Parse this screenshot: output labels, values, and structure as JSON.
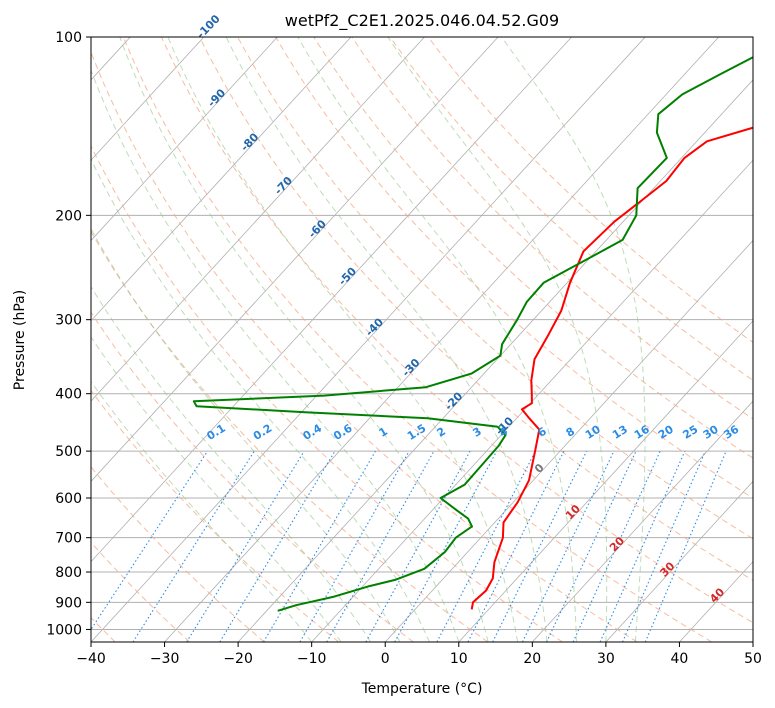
{
  "chart_data": {
    "type": "line",
    "subtype": "skew-t log-p diagram",
    "title": "wetPf2_C2E1.2025.046.04.52.G09",
    "xlabel": "Temperature (°C)",
    "ylabel": "Pressure (hPa)",
    "xlim": [
      -40,
      50
    ],
    "ylim": [
      1050,
      100
    ],
    "y_scale": "log",
    "grid": true,
    "x_ticks": [
      -40,
      -30,
      -20,
      -10,
      0,
      10,
      20,
      30,
      40,
      50
    ],
    "x_tick_labels": [
      "−40",
      "−30",
      "−20",
      "−10",
      "0",
      "10",
      "20",
      "30",
      "40",
      "50"
    ],
    "y_ticks": [
      100,
      200,
      300,
      400,
      500,
      600,
      700,
      800,
      900,
      1000
    ],
    "y_tick_labels": [
      "100",
      "200",
      "300",
      "400",
      "500",
      "600",
      "700",
      "800",
      "900",
      "1000"
    ],
    "series": [
      {
        "role": "temperature",
        "color": "#ff0000",
        "points": [
          [
            100,
            -4.8
          ],
          [
            115,
            -6.8
          ],
          [
            130,
            -9.4
          ],
          [
            142,
            -13.9
          ],
          [
            150,
            -18.6
          ],
          [
            160,
            -19.6
          ],
          [
            175,
            -19.2
          ],
          [
            190,
            -20.2
          ],
          [
            205,
            -21.2
          ],
          [
            230,
            -21.7
          ],
          [
            260,
            -19.6
          ],
          [
            290,
            -17.3
          ],
          [
            320,
            -16.0
          ],
          [
            350,
            -14.9
          ],
          [
            380,
            -12.7
          ],
          [
            400,
            -11.0
          ],
          [
            415,
            -9.8
          ],
          [
            425,
            -10.4
          ],
          [
            440,
            -8.3
          ],
          [
            460,
            -5.5
          ],
          [
            500,
            -3.4
          ],
          [
            560,
            -0.6
          ],
          [
            610,
            0.6
          ],
          [
            660,
            1.2
          ],
          [
            700,
            3.0
          ],
          [
            770,
            4.9
          ],
          [
            820,
            6.7
          ],
          [
            860,
            7.3
          ],
          [
            900,
            7.0
          ],
          [
            925,
            7.7
          ]
        ]
      },
      {
        "role": "dewpoint",
        "color": "#008000",
        "points": [
          [
            100,
            -19.9
          ],
          [
            105,
            -21.8
          ],
          [
            115,
            -25.0
          ],
          [
            125,
            -27.8
          ],
          [
            135,
            -28.6
          ],
          [
            145,
            -26.5
          ],
          [
            160,
            -22.0
          ],
          [
            180,
            -22.2
          ],
          [
            200,
            -19.0
          ],
          [
            220,
            -17.8
          ],
          [
            240,
            -20.6
          ],
          [
            260,
            -23.2
          ],
          [
            280,
            -23.1
          ],
          [
            300,
            -22.2
          ],
          [
            330,
            -21.2
          ],
          [
            345,
            -20.0
          ],
          [
            370,
            -21.7
          ],
          [
            390,
            -26.2
          ],
          [
            403,
            -39.0
          ],
          [
            412,
            -56.0
          ],
          [
            420,
            -55.0
          ],
          [
            430,
            -39.5
          ],
          [
            440,
            -22.1
          ],
          [
            455,
            -11.5
          ],
          [
            470,
            -9.4
          ],
          [
            490,
            -9.0
          ],
          [
            530,
            -8.9
          ],
          [
            570,
            -8.8
          ],
          [
            600,
            -10.4
          ],
          [
            630,
            -6.6
          ],
          [
            650,
            -4.1
          ],
          [
            670,
            -2.6
          ],
          [
            700,
            -3.4
          ],
          [
            740,
            -3.1
          ],
          [
            790,
            -3.8
          ],
          [
            825,
            -6.4
          ],
          [
            845,
            -9.1
          ],
          [
            880,
            -12.6
          ],
          [
            910,
            -16.7
          ],
          [
            930,
            -18.5
          ]
        ]
      }
    ],
    "reference_lines": {
      "isotherms": {
        "color": "#b0b0b0",
        "style": "solid"
      },
      "dry_adiabats": {
        "color": "#f4a582",
        "style": "dashed",
        "values_c": [
          -50,
          -40,
          -30,
          -20,
          -10,
          0,
          10,
          20,
          30,
          40,
          50,
          60,
          70,
          80,
          90,
          100,
          110,
          120
        ]
      },
      "moist_adiabats": {
        "color": "#92c58b",
        "style": "dashed"
      },
      "mixing_ratio": {
        "color": "#2b8ce6",
        "style": "dotted",
        "top_hpa": 500
      }
    },
    "annotations": {
      "isotherm_labels": {
        "color": "#2166ac",
        "values": [
          "-100",
          "-90",
          "-80",
          "-70",
          "-60",
          "-50",
          "-40",
          "-30",
          "-20",
          "-10"
        ]
      },
      "mixing_ratio_labels": {
        "color": "#2b8ce6",
        "values": [
          "0.1",
          "0.2",
          "0.4",
          "0.6",
          "1",
          "1.5",
          "2",
          "3",
          "4",
          "6",
          "8",
          "10",
          "13",
          "16",
          "20",
          "25",
          "30",
          "36"
        ]
      },
      "lower_isotherm_labels": {
        "gray": {
          "color": "#777777",
          "values": [
            "0"
          ]
        },
        "red": {
          "color": "#d62728",
          "values": [
            "10",
            "20",
            "30",
            "40"
          ]
        }
      }
    }
  }
}
